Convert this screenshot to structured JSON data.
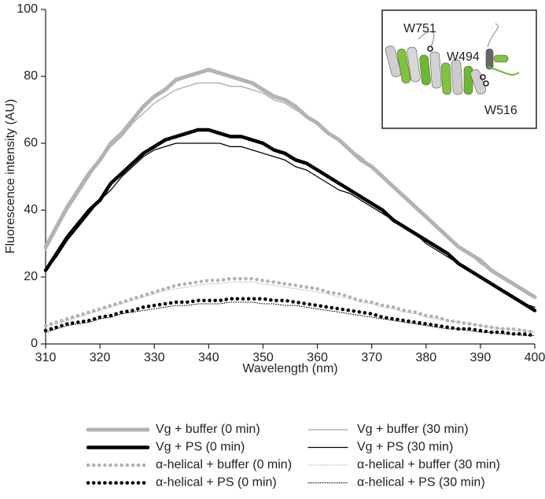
{
  "chart_data": {
    "type": "line",
    "x_label": "Wavelength (nm)",
    "y_label": "Fluorescence intensity (AU)",
    "xlim": [
      310,
      400
    ],
    "xticks": [
      310,
      320,
      330,
      340,
      350,
      360,
      370,
      380,
      390,
      400
    ],
    "ylim": [
      0,
      100
    ],
    "yticks": [
      0,
      20,
      40,
      60,
      80,
      100
    ],
    "annotations": [
      "W751",
      "W494",
      "W516"
    ],
    "x": [
      310,
      312,
      314,
      316,
      318,
      320,
      322,
      324,
      326,
      328,
      330,
      332,
      334,
      336,
      338,
      340,
      342,
      344,
      346,
      348,
      350,
      352,
      354,
      356,
      358,
      360,
      362,
      364,
      366,
      368,
      370,
      372,
      374,
      376,
      378,
      380,
      382,
      384,
      386,
      388,
      390,
      392,
      394,
      396,
      398,
      400
    ],
    "series": [
      {
        "name": "Vg + buffer (0 min)",
        "color": "#b3b3b3",
        "values": [
          29,
          35,
          41,
          46,
          51,
          55,
          60,
          63,
          67,
          71,
          74,
          76,
          79,
          80,
          81,
          82,
          81,
          80,
          79,
          78,
          76,
          74,
          73,
          71,
          68,
          66,
          63,
          61,
          58,
          55,
          53,
          50,
          47,
          44,
          41,
          38,
          35,
          32,
          29,
          27,
          25,
          22,
          20,
          18,
          16,
          14
        ]
      },
      {
        "name": "Vg + buffer (30 min)",
        "color": "#b3b3b3",
        "values": [
          28,
          34,
          40,
          45,
          50,
          55,
          59,
          62,
          66,
          69,
          72,
          74,
          76,
          77,
          78,
          78,
          78,
          77,
          77,
          76,
          75,
          73,
          72,
          70,
          68,
          66,
          63,
          61,
          58,
          56,
          53,
          50,
          47,
          44,
          41,
          38,
          35,
          32,
          29,
          27,
          24,
          22,
          20,
          18,
          16,
          14
        ]
      },
      {
        "name": "Vg + PS (0 min)",
        "color": "#000000",
        "values": [
          22,
          27,
          32,
          36,
          40,
          43,
          48,
          51,
          54,
          57,
          59,
          61,
          62,
          63,
          64,
          64,
          63,
          62,
          62,
          61,
          60,
          58,
          57,
          55,
          54,
          52,
          50,
          48,
          46,
          44,
          42,
          40,
          37,
          35,
          33,
          31,
          29,
          27,
          24,
          22,
          20,
          18,
          16,
          14,
          12,
          10
        ]
      },
      {
        "name": "Vg + PS (30 min)",
        "color": "#000000",
        "values": [
          22,
          26,
          31,
          35,
          39,
          43,
          46,
          50,
          53,
          56,
          58,
          59,
          60,
          60,
          60,
          60,
          60,
          59,
          59,
          58,
          57,
          56,
          55,
          53,
          52,
          50,
          48,
          46,
          45,
          43,
          41,
          39,
          37,
          35,
          33,
          30,
          28,
          26,
          24,
          22,
          20,
          18,
          16,
          14,
          12,
          11
        ]
      },
      {
        "name": "α-helical + buffer (0 min)",
        "color": "#b3b3b3",
        "values": [
          5.5,
          6.5,
          7.5,
          8.5,
          9.5,
          10.5,
          11.5,
          12.5,
          13.5,
          14.5,
          15.5,
          16.5,
          17.5,
          18,
          18.5,
          19,
          19,
          19.5,
          19.5,
          19.5,
          19,
          18.5,
          18,
          17.5,
          17,
          16.5,
          15.5,
          15,
          14,
          13,
          12.5,
          11.5,
          11,
          10,
          9.5,
          8.5,
          8,
          7,
          6.5,
          6,
          5.5,
          5,
          4.5,
          4.5,
          4,
          3.5
        ]
      },
      {
        "name": "α-helical + buffer (30 min)",
        "color": "#b3b3b3",
        "values": [
          5,
          6,
          7,
          8,
          9,
          10,
          11,
          12,
          13,
          14,
          15,
          16,
          16.5,
          17,
          17.5,
          18,
          18,
          18.5,
          18.5,
          18.5,
          18,
          17.5,
          17,
          16.5,
          16,
          15.5,
          15,
          14,
          13.5,
          12.5,
          12,
          11,
          10.5,
          9.5,
          9,
          8,
          7.5,
          7,
          6.5,
          6,
          5.5,
          5,
          4.5,
          4,
          4,
          3.5
        ]
      },
      {
        "name": "α-helical + PS (0 min)",
        "color": "#000000",
        "values": [
          4,
          5,
          6,
          6.5,
          7,
          8,
          8.5,
          9.5,
          10,
          11,
          11.5,
          12,
          12.5,
          12.5,
          13,
          13,
          13,
          13.5,
          13.5,
          13.5,
          13.5,
          13,
          13,
          12.5,
          12,
          11.5,
          11,
          10.5,
          10,
          9.5,
          9,
          8,
          7.5,
          7,
          6.5,
          6,
          5.5,
          5,
          4.5,
          4.5,
          4,
          3.5,
          3.5,
          3,
          3,
          2.5
        ]
      },
      {
        "name": "α-helical + PS (30 min)",
        "color": "#000000",
        "values": [
          3.5,
          4.5,
          5.5,
          6,
          6.5,
          7.5,
          8,
          9,
          9.5,
          10,
          10.5,
          11,
          11.5,
          11.5,
          12,
          12,
          12,
          12.5,
          12.5,
          12.5,
          12,
          12,
          11.5,
          11.5,
          11,
          10.5,
          10,
          9.5,
          9,
          8.5,
          8,
          7.5,
          7,
          6.5,
          6,
          5.5,
          5,
          4.5,
          4.5,
          4,
          3.5,
          3.5,
          3,
          3,
          2.5,
          2.5
        ]
      }
    ]
  }
}
